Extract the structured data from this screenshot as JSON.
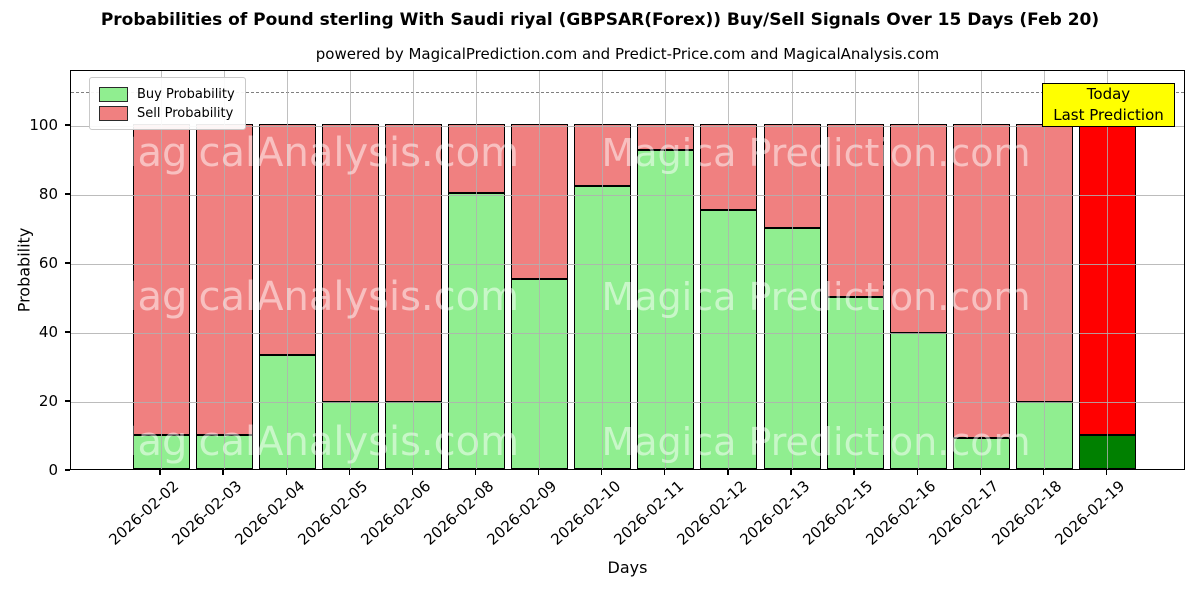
{
  "figure": {
    "title": "Probabilities of Pound sterling With Saudi riyal (GBPSAR(Forex)) Buy/Sell Signals Over 15 Days (Feb 20)",
    "subtitle": "powered by MagicalPrediction.com and Predict-Price.com and MagicalAnalysis.com"
  },
  "axes": {
    "xlabel": "Days",
    "ylabel": "Probability",
    "yticks": [
      0,
      20,
      40,
      60,
      80,
      100
    ],
    "ylim": [
      0,
      116
    ],
    "dashed_reference_line_y": 110,
    "grid": true
  },
  "legend": {
    "position": "upper-left",
    "items": [
      {
        "label": "Buy Probability",
        "color": "#90EE90"
      },
      {
        "label": "Sell Probability",
        "color": "#F08080"
      }
    ]
  },
  "annotation_box": {
    "line1": "Today",
    "line2": "Last Prediction",
    "bg_color": "#FFFF00",
    "border_color": "#000000"
  },
  "watermarks": {
    "left_text": "MagicalAnalysis.com",
    "right_text": "Magica Prediction.com",
    "opacity": 0.5
  },
  "chart_data": {
    "type": "bar",
    "stacked": true,
    "title": "Probabilities of Pound sterling With Saudi riyal (GBPSAR(Forex)) Buy/Sell Signals Over 15 Days (Feb 20)",
    "xlabel": "Days",
    "ylabel": "Probability",
    "ylim": [
      0,
      116
    ],
    "legend_position": "upper-left",
    "categories": [
      "2026-02-02",
      "2026-02-03",
      "2026-02-04",
      "2026-02-05",
      "2026-02-06",
      "2026-02-08",
      "2026-02-09",
      "2026-02-10",
      "2026-02-11",
      "2026-02-12",
      "2026-02-13",
      "2026-02-15",
      "2026-02-16",
      "2026-02-17",
      "2026-02-18",
      "2026-02-19"
    ],
    "series": [
      {
        "name": "Buy Probability",
        "color": "#90EE90",
        "values": [
          10,
          10,
          33,
          19.5,
          19.5,
          80,
          55,
          82,
          92.5,
          75,
          70,
          50,
          39.5,
          9,
          19.5,
          10
        ]
      },
      {
        "name": "Sell Probability",
        "color": "#F08080",
        "values": [
          90,
          90,
          67,
          80.5,
          80.5,
          20,
          45,
          18,
          7.5,
          25,
          30,
          50,
          60.5,
          91,
          80.5,
          90
        ]
      }
    ],
    "today_index": 15,
    "today_colors": {
      "buy": "#008000",
      "sell": "#FF0000"
    },
    "bar_edge_color": "#000000"
  }
}
